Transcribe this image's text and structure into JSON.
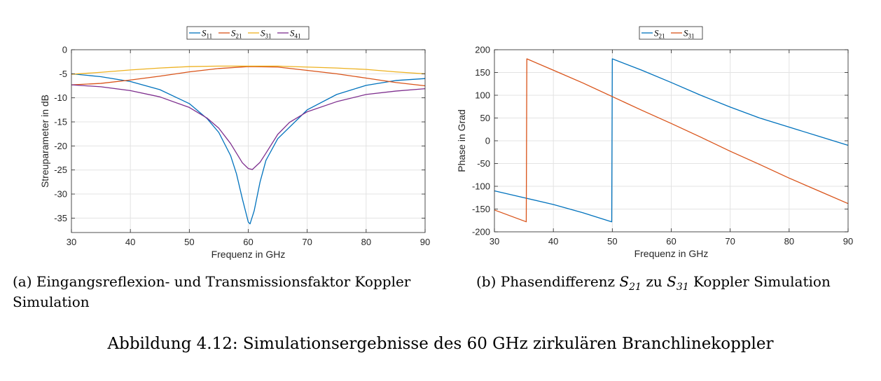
{
  "chart_data": [
    {
      "type": "line",
      "xlabel": "Frequenz in GHz",
      "ylabel": "Streuparameter in dB",
      "xlim": [
        30,
        90
      ],
      "ylim": [
        -38,
        0
      ],
      "xticks": [
        30,
        40,
        50,
        60,
        70,
        80,
        90
      ],
      "yticks": [
        0,
        -5,
        -10,
        -15,
        -20,
        -25,
        -30,
        -35
      ],
      "grid": true,
      "legend_position": "top-center",
      "series": [
        {
          "name": "S11",
          "legend_main": "S",
          "legend_sub": "11",
          "color": "#0072bd",
          "x": [
            30,
            35,
            40,
            45,
            50,
            53,
            55,
            57,
            58,
            59,
            60,
            60.3,
            61,
            62,
            63,
            65,
            70,
            75,
            80,
            85,
            90
          ],
          "y": [
            -5,
            -5.6,
            -6.6,
            -8.3,
            -11.2,
            -14.3,
            -17.2,
            -22,
            -25.8,
            -31,
            -35.8,
            -36.2,
            -33.5,
            -27.5,
            -23,
            -18.5,
            -12.5,
            -9.3,
            -7.4,
            -6.4,
            -6
          ]
        },
        {
          "name": "S21",
          "legend_main": "S",
          "legend_sub": "21",
          "color": "#d95319",
          "x": [
            30,
            35,
            40,
            45,
            50,
            55,
            60,
            65,
            70,
            75,
            80,
            85,
            90
          ],
          "y": [
            -7.3,
            -7,
            -6.3,
            -5.5,
            -4.6,
            -3.9,
            -3.5,
            -3.6,
            -4.3,
            -5,
            -5.9,
            -6.8,
            -7.5
          ]
        },
        {
          "name": "S31",
          "legend_main": "S",
          "legend_sub": "31",
          "color": "#edb120",
          "x": [
            30,
            35,
            40,
            45,
            50,
            55,
            60,
            65,
            70,
            75,
            80,
            85,
            90
          ],
          "y": [
            -5.1,
            -4.7,
            -4.2,
            -3.8,
            -3.5,
            -3.4,
            -3.4,
            -3.4,
            -3.6,
            -3.8,
            -4.1,
            -4.6,
            -5
          ]
        },
        {
          "name": "S41",
          "legend_main": "S",
          "legend_sub": "41",
          "color": "#7e2f8e",
          "x": [
            30,
            35,
            40,
            45,
            50,
            53,
            55,
            57,
            58,
            59,
            60,
            60.7,
            62,
            63,
            65,
            67,
            70,
            75,
            80,
            85,
            90
          ],
          "y": [
            -7.3,
            -7.7,
            -8.5,
            -9.8,
            -12,
            -14.2,
            -16.3,
            -19.5,
            -21.5,
            -23.5,
            -24.7,
            -24.9,
            -23.4,
            -21.5,
            -17.6,
            -15.1,
            -12.9,
            -10.8,
            -9.3,
            -8.6,
            -8.1
          ]
        }
      ]
    },
    {
      "type": "line",
      "xlabel": "Frequenz in GHz",
      "ylabel": "Phase in Grad",
      "xlim": [
        30,
        90
      ],
      "ylim": [
        -200,
        200
      ],
      "xticks": [
        30,
        40,
        50,
        60,
        70,
        80,
        90
      ],
      "yticks": [
        200,
        150,
        100,
        50,
        0,
        -50,
        -100,
        -150,
        -200
      ],
      "grid": true,
      "legend_position": "top-center",
      "series": [
        {
          "name": "S21",
          "legend_main": "S",
          "legend_sub": "21",
          "color": "#0072bd",
          "x": [
            30,
            35,
            40,
            45,
            49.9,
            50,
            55,
            60,
            65,
            70,
            75,
            80,
            85,
            90
          ],
          "y": [
            -110,
            -125,
            -140,
            -158,
            -178,
            180,
            155,
            128,
            100,
            74,
            50,
            30,
            10,
            -10
          ]
        },
        {
          "name": "S31",
          "legend_main": "S",
          "legend_sub": "31",
          "color": "#d95319",
          "x": [
            30,
            35.4,
            35.5,
            40,
            45,
            50,
            55,
            60,
            65,
            70,
            75,
            80,
            85,
            90
          ],
          "y": [
            -152,
            -178,
            180,
            155,
            127,
            97,
            67,
            38,
            8,
            -23,
            -52,
            -82,
            -110,
            -138
          ]
        }
      ]
    }
  ],
  "captions": {
    "a_text": "(a) Eingangsreflexion- und Transmissionsfaktor Koppler Simulation",
    "b_prefix": "(b) Phasendifferenz ",
    "b_s1_main": "S",
    "b_s1_sub": "21",
    "b_middle": " zu ",
    "b_s2_main": "S",
    "b_s2_sub": "31",
    "b_suffix": " Koppler Simulation",
    "main": "Abbildung 4.12: Simulationsergebnisse des 60 GHz zirkulären Branchlinekoppler"
  }
}
